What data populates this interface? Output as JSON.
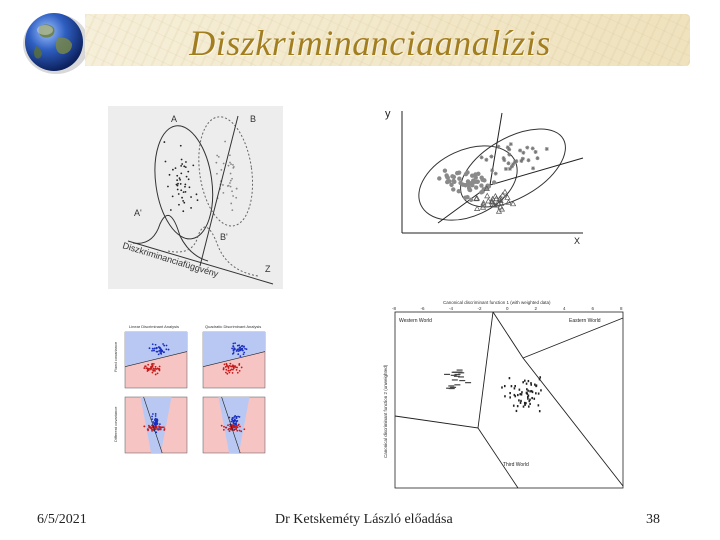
{
  "header": {
    "title": "Diszkriminanciaanalízis"
  },
  "figures": {
    "top_left": {
      "label_a": "A",
      "label_b": "B",
      "label_a_proj": "A'",
      "label_b_proj": "B'",
      "label_z": "Z",
      "axis_caption": "Diszkriminanciafüggvény"
    },
    "top_right": {
      "label_y": "y",
      "label_x": "X"
    },
    "bottom_left": {
      "panel_titles": [
        "Linear Discriminant Analysis",
        "Quadratic Discriminant Analysis"
      ],
      "row_labels": [
        "Fixed covariance",
        "Different covariance"
      ]
    },
    "bottom_right": {
      "top_axis_title": "Canonical discriminant function 1 (with weighted data)",
      "left_axis_title": "Canonical discriminant function 2 (unweighted)",
      "region_labels": [
        "Western World",
        "Eastern World",
        "Third World"
      ],
      "top_ticks": [
        "-8",
        "-6",
        "-4",
        "-2",
        "0",
        "2",
        "4",
        "6",
        "8"
      ]
    }
  },
  "footer": {
    "date": "6/5/2021",
    "author": "Dr Ketskeméty László előadása",
    "page": "38"
  }
}
